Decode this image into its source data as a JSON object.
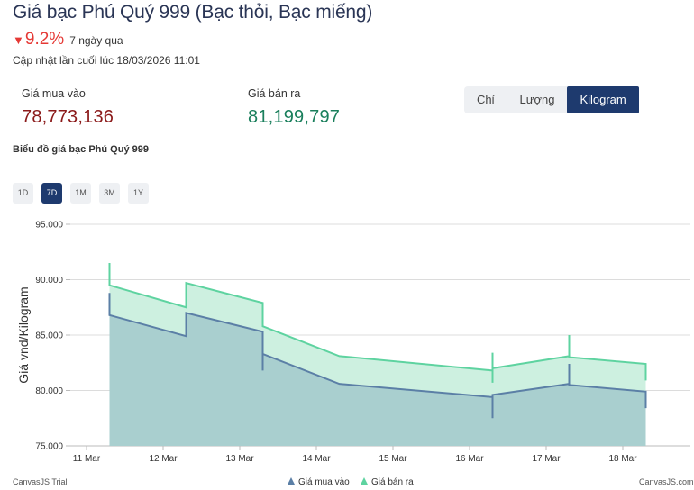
{
  "header": {
    "title": "Giá bạc Phú Quý 999 (Bạc thỏi, Bạc miếng)",
    "change_arrow": "▼",
    "change_percent": "9.2%",
    "change_period": "7 ngày qua",
    "updated": "Cập nhật lần cuối lúc 18/03/2026 11:01"
  },
  "prices": {
    "buy_label": "Giá mua vào",
    "buy_value": "78,773,136",
    "sell_label": "Giá bán ra",
    "sell_value": "81,199,797"
  },
  "unit_tabs": [
    {
      "label": "Chỉ",
      "active": false
    },
    {
      "label": "Lượng",
      "active": false
    },
    {
      "label": "Kilogram",
      "active": true
    }
  ],
  "chart_section": {
    "title": "Biểu đồ giá bạc Phú Quý 999",
    "ranges": [
      {
        "label": "1D",
        "active": false
      },
      {
        "label": "7D",
        "active": true
      },
      {
        "label": "1M",
        "active": false
      },
      {
        "label": "3M",
        "active": false
      },
      {
        "label": "1Y",
        "active": false
      }
    ],
    "credit_left": "CanvasJS Trial",
    "credit_right": "CanvasJS.com"
  },
  "colors": {
    "buy_line": "#5b7fa6",
    "buy_fill": "#a9cfcf",
    "sell_line": "#5ed3a0",
    "sell_fill": "#cdf0e0",
    "accent": "#1e3a6e",
    "down": "#e53935"
  },
  "chart_data": {
    "type": "area",
    "ylabel": "Giá vnd/Kilogram",
    "ylim": [
      75000,
      95000
    ],
    "y_ticks": [
      "75.000",
      "80.000",
      "85.000",
      "90.000",
      "95.000"
    ],
    "x_ticks": [
      "11 Mar",
      "12 Mar",
      "13 Mar",
      "14 Mar",
      "15 Mar",
      "16 Mar",
      "17 Mar",
      "18 Mar"
    ],
    "grid": true,
    "legend_position": "bottom",
    "series": [
      {
        "name": "Giá bán ra",
        "points": [
          {
            "x": 11.3,
            "y": 91500
          },
          {
            "x": 11.3,
            "y": 89500
          },
          {
            "x": 12.3,
            "y": 87500
          },
          {
            "x": 12.3,
            "y": 89700
          },
          {
            "x": 13.3,
            "y": 87900
          },
          {
            "x": 13.3,
            "y": 85800
          },
          {
            "x": 14.3,
            "y": 83100
          },
          {
            "x": 16.3,
            "y": 81800
          },
          {
            "x": 16.3,
            "y": 83400
          },
          {
            "x": 16.3,
            "y": 80700
          },
          {
            "x": 16.3,
            "y": 82000
          },
          {
            "x": 17.3,
            "y": 83100
          },
          {
            "x": 17.3,
            "y": 85000
          },
          {
            "x": 17.3,
            "y": 83000
          },
          {
            "x": 18.3,
            "y": 82400
          },
          {
            "x": 18.3,
            "y": 80900
          }
        ]
      },
      {
        "name": "Giá mua vào",
        "points": [
          {
            "x": 11.3,
            "y": 88800
          },
          {
            "x": 11.3,
            "y": 86800
          },
          {
            "x": 12.3,
            "y": 84900
          },
          {
            "x": 12.3,
            "y": 87000
          },
          {
            "x": 13.3,
            "y": 85300
          },
          {
            "x": 13.3,
            "y": 81800
          },
          {
            "x": 13.3,
            "y": 83300
          },
          {
            "x": 14.3,
            "y": 80600
          },
          {
            "x": 16.3,
            "y": 79400
          },
          {
            "x": 16.3,
            "y": 77500
          },
          {
            "x": 16.3,
            "y": 79600
          },
          {
            "x": 17.3,
            "y": 80600
          },
          {
            "x": 17.3,
            "y": 82400
          },
          {
            "x": 17.3,
            "y": 80500
          },
          {
            "x": 18.3,
            "y": 79900
          },
          {
            "x": 18.3,
            "y": 78400
          }
        ]
      }
    ]
  }
}
